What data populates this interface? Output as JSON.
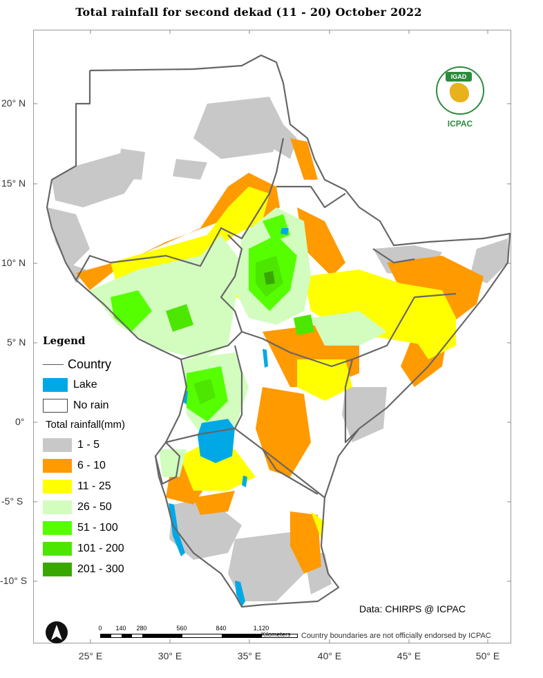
{
  "title": "Total rainfall  for  second  dekad (11 - 20)  October 2022",
  "logo": {
    "badge": "IGAD",
    "name": "ICPAC"
  },
  "lat_ticks": [
    "20° N",
    "15° N",
    "10° N",
    "5° N",
    "0°",
    "-5° S",
    "-10° S"
  ],
  "lon_ticks": [
    "25° E",
    "30° E",
    "35° E",
    "40° E",
    "45° E",
    "50° E"
  ],
  "legend": {
    "title": "Legend",
    "country": "Country",
    "lake": "Lake",
    "no_rain": "No rain",
    "rainfall_heading": "Total rainfall(mm)",
    "classes": [
      {
        "label": "1 - 5",
        "color": "#c8c8c8"
      },
      {
        "label": "6 - 10",
        "color": "#ff9a00"
      },
      {
        "label": "11 - 25",
        "color": "#ffff00"
      },
      {
        "label": "26 - 50",
        "color": "#d2fdbe"
      },
      {
        "label": "51 - 100",
        "color": "#55ff00"
      },
      {
        "label": "101 - 200",
        "color": "#4ce600"
      },
      {
        "label": "201 - 300",
        "color": "#38a800"
      }
    ],
    "lake_color": "#00a9e6"
  },
  "credit": "Data: CHIRPS @ ICPAC",
  "disclaimer": "Country boundaries are not officially endorsed by ICPAC",
  "scale": {
    "labels": [
      "0",
      "140",
      "280",
      "560",
      "840",
      "1,120"
    ],
    "unit": "Kilometers"
  }
}
